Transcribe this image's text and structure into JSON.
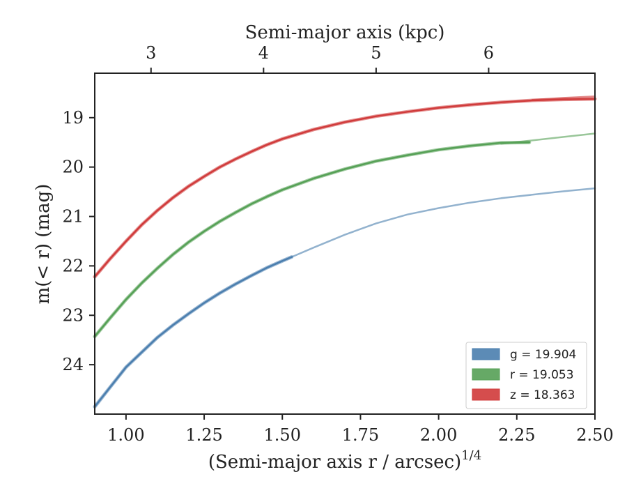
{
  "chart_data": {
    "type": "line",
    "xlabel": "(Semi-major axis r / arcsec)",
    "xlabel_sup": "1/4",
    "ylabel": "m(< r) (mag)",
    "top_xlabel": "Semi-major axis (kpc)",
    "xlim": [
      0.9,
      2.5
    ],
    "ylim": [
      25.0,
      18.1
    ],
    "y_inverted": true,
    "grid": false,
    "legend_position": "lower-right",
    "x_ticks": [
      {
        "value": 1.0,
        "label": "1.00"
      },
      {
        "value": 1.25,
        "label": "1.25"
      },
      {
        "value": 1.5,
        "label": "1.50"
      },
      {
        "value": 1.75,
        "label": "1.75"
      },
      {
        "value": 2.0,
        "label": "2.00"
      },
      {
        "value": 2.25,
        "label": "2.25"
      },
      {
        "value": 2.5,
        "label": "2.50"
      }
    ],
    "y_ticks": [
      {
        "value": 19,
        "label": "19"
      },
      {
        "value": 20,
        "label": "20"
      },
      {
        "value": 21,
        "label": "21"
      },
      {
        "value": 22,
        "label": "22"
      },
      {
        "value": 23,
        "label": "23"
      },
      {
        "value": 24,
        "label": "24"
      }
    ],
    "top_ticks": [
      {
        "x": 1.08,
        "label": "3"
      },
      {
        "x": 1.44,
        "label": "4"
      },
      {
        "x": 1.8,
        "label": "5"
      },
      {
        "x": 2.16,
        "label": "6"
      }
    ],
    "series": [
      {
        "name": "g",
        "legend_label": "g = 19.904",
        "color": "#4a7eae",
        "measured": [
          [
            0.9,
            24.85
          ],
          [
            0.95,
            24.45
          ],
          [
            1.0,
            24.05
          ],
          [
            1.05,
            23.75
          ],
          [
            1.1,
            23.45
          ],
          [
            1.15,
            23.2
          ],
          [
            1.2,
            22.97
          ],
          [
            1.25,
            22.75
          ],
          [
            1.3,
            22.55
          ],
          [
            1.35,
            22.37
          ],
          [
            1.4,
            22.2
          ],
          [
            1.45,
            22.04
          ],
          [
            1.5,
            21.9
          ],
          [
            1.53,
            21.82
          ]
        ],
        "model": [
          [
            1.53,
            21.82
          ],
          [
            1.6,
            21.63
          ],
          [
            1.7,
            21.37
          ],
          [
            1.8,
            21.14
          ],
          [
            1.9,
            20.96
          ],
          [
            2.0,
            20.83
          ],
          [
            2.1,
            20.72
          ],
          [
            2.2,
            20.63
          ],
          [
            2.3,
            20.56
          ],
          [
            2.4,
            20.49
          ],
          [
            2.5,
            20.43
          ]
        ]
      },
      {
        "name": "r",
        "legend_label": "r = 19.053",
        "color": "#55a055",
        "measured": [
          [
            0.9,
            23.43
          ],
          [
            0.95,
            23.05
          ],
          [
            1.0,
            22.68
          ],
          [
            1.05,
            22.35
          ],
          [
            1.1,
            22.05
          ],
          [
            1.15,
            21.77
          ],
          [
            1.2,
            21.52
          ],
          [
            1.25,
            21.3
          ],
          [
            1.3,
            21.1
          ],
          [
            1.35,
            20.92
          ],
          [
            1.4,
            20.75
          ],
          [
            1.45,
            20.6
          ],
          [
            1.5,
            20.46
          ],
          [
            1.6,
            20.23
          ],
          [
            1.7,
            20.04
          ],
          [
            1.8,
            19.88
          ],
          [
            1.9,
            19.76
          ],
          [
            2.0,
            19.65
          ],
          [
            2.1,
            19.57
          ],
          [
            2.2,
            19.51
          ],
          [
            2.29,
            19.5
          ]
        ],
        "model": [
          [
            2.2,
            19.53
          ],
          [
            2.3,
            19.46
          ],
          [
            2.4,
            19.39
          ],
          [
            2.5,
            19.32
          ]
        ]
      },
      {
        "name": "z",
        "legend_label": "z = 18.363",
        "color": "#d03a3a",
        "measured": [
          [
            0.9,
            22.22
          ],
          [
            0.95,
            21.85
          ],
          [
            1.0,
            21.5
          ],
          [
            1.05,
            21.17
          ],
          [
            1.1,
            20.88
          ],
          [
            1.15,
            20.62
          ],
          [
            1.2,
            20.39
          ],
          [
            1.25,
            20.19
          ],
          [
            1.3,
            20.0
          ],
          [
            1.35,
            19.84
          ],
          [
            1.4,
            19.69
          ],
          [
            1.45,
            19.55
          ],
          [
            1.5,
            19.43
          ],
          [
            1.6,
            19.24
          ],
          [
            1.7,
            19.09
          ],
          [
            1.8,
            18.97
          ],
          [
            1.9,
            18.88
          ],
          [
            2.0,
            18.8
          ],
          [
            2.1,
            18.74
          ],
          [
            2.2,
            18.69
          ],
          [
            2.3,
            18.65
          ],
          [
            2.4,
            18.63
          ],
          [
            2.5,
            18.62
          ]
        ],
        "model": [
          [
            2.3,
            18.64
          ],
          [
            2.4,
            18.6
          ],
          [
            2.5,
            18.57
          ]
        ]
      }
    ]
  }
}
